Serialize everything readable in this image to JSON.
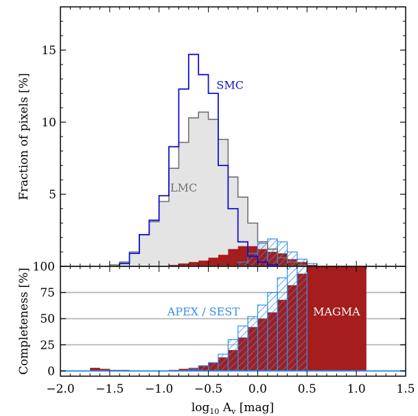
{
  "colors": {
    "smc": "#1010d0",
    "lmc_line": "#707070",
    "lmc_fill": "#e4e4e4",
    "magma": "#a51d1d",
    "apex": "#2f8fe8",
    "grid": "#bdbdbd"
  },
  "chart_data": [
    {
      "id": "top",
      "type": "histogram",
      "ylabel": "Fraction of pixels [%]",
      "xlim": [
        -2.0,
        1.5
      ],
      "ylim": [
        0,
        18
      ],
      "yticks": [
        5,
        10,
        15
      ],
      "ytick_labels": [
        "5",
        "10",
        "15"
      ],
      "bin_edges": [
        -1.7,
        -1.6,
        -1.5,
        -1.4,
        -1.3,
        -1.2,
        -1.1,
        -1.0,
        -0.9,
        -0.8,
        -0.7,
        -0.6,
        -0.5,
        -0.4,
        -0.3,
        -0.2,
        -0.1,
        0.0,
        0.1,
        0.2,
        0.3,
        0.4,
        0.5,
        0.6,
        0.7,
        0.8
      ],
      "series": [
        {
          "name": "LMC",
          "style": "step-filled",
          "values": [
            0,
            0,
            0.1,
            0.3,
            1,
            2.2,
            3.1,
            4.5,
            6.8,
            8.6,
            10.3,
            10.7,
            10.2,
            8.8,
            6.2,
            4.8,
            3.0,
            1.7,
            1.2,
            0.6,
            0.3,
            0.1,
            0,
            0,
            0
          ]
        },
        {
          "name": "SMC",
          "style": "step",
          "values": [
            0,
            0,
            0,
            0.2,
            0.9,
            2.2,
            3.2,
            4.9,
            8.3,
            12.3,
            14.7,
            13.3,
            12.0,
            7.0,
            4.0,
            1.7,
            0.7,
            0.3,
            0.1,
            0,
            0,
            0,
            0,
            0,
            0
          ]
        },
        {
          "name": "MAGMA",
          "style": "filled",
          "values": [
            0,
            0,
            0,
            0,
            0,
            0,
            0,
            0,
            0.1,
            0.2,
            0.3,
            0.4,
            0.6,
            0.8,
            1.2,
            1.4,
            1.4,
            1.2,
            1.0,
            0.9,
            0.5,
            0.3,
            0.1,
            0,
            0
          ]
        },
        {
          "name": "APEX / SEST",
          "style": "hatched",
          "values": [
            0,
            0,
            0,
            0,
            0,
            0,
            0,
            0,
            0,
            0,
            0,
            0,
            0,
            0,
            0,
            0.3,
            0.9,
            1.6,
            1.9,
            1.7,
            1.0,
            0.5,
            0.2,
            0,
            0
          ]
        }
      ],
      "annotations": [
        {
          "text": "SMC",
          "x": -0.28,
          "y": 12.3,
          "color_key": "smc"
        },
        {
          "text": "LMC",
          "x": -0.75,
          "y": 5.2,
          "color_key": "lmc_line"
        }
      ]
    },
    {
      "id": "bottom",
      "type": "histogram",
      "xlabel_prefix": "log",
      "xlabel_sub1": "10",
      "xlabel_mid": " A",
      "xlabel_sub2": "v",
      "xlabel_suffix": " [mag]",
      "ylabel": "Completeness [%]",
      "xlim": [
        -2.0,
        1.5
      ],
      "ylim": [
        -5,
        100
      ],
      "yticks": [
        0,
        25,
        50,
        75,
        100
      ],
      "ytick_labels": [
        "0",
        "25",
        "50",
        "75",
        "100"
      ],
      "grid_y": [
        25,
        50,
        75,
        100
      ],
      "xticks": [
        -2.0,
        -1.5,
        -1.0,
        -0.5,
        0.0,
        0.5,
        1.0,
        1.5
      ],
      "xtick_labels": [
        "−2.0",
        "−1.5",
        "−1.0",
        "−0.5",
        "0.0",
        "0.5",
        "1.0",
        "1.5"
      ],
      "magma_bins": {
        "edges": [
          -1.7,
          -1.6,
          -1.5,
          -1.4,
          -1.3,
          -1.2,
          -1.1,
          -1.0,
          -0.9,
          -0.8,
          -0.7,
          -0.6,
          -0.5,
          -0.4,
          -0.3,
          -0.2,
          -0.1,
          0.0,
          0.1,
          0.2,
          0.3,
          0.4,
          0.5,
          1.1
        ],
        "values": [
          3,
          2,
          1,
          1,
          0,
          0,
          0,
          0,
          1,
          2,
          3,
          5,
          8,
          13,
          20,
          32,
          42,
          50,
          56,
          68,
          82,
          93,
          100
        ]
      },
      "apex_bins": {
        "edges": [
          -0.7,
          -0.6,
          -0.5,
          -0.4,
          -0.3,
          -0.2,
          -0.1,
          0.0,
          0.1,
          0.2,
          0.3,
          0.4,
          0.5
        ],
        "values": [
          2,
          5,
          8,
          16,
          30,
          43,
          52,
          63,
          75,
          89,
          100,
          100
        ]
      },
      "annotations": [
        {
          "text": "APEX / SEST",
          "x": -0.55,
          "y": 57,
          "color_key": "apex"
        },
        {
          "text": "MAGMA",
          "x": 0.8,
          "y": 57,
          "color_key": "white"
        }
      ]
    }
  ]
}
